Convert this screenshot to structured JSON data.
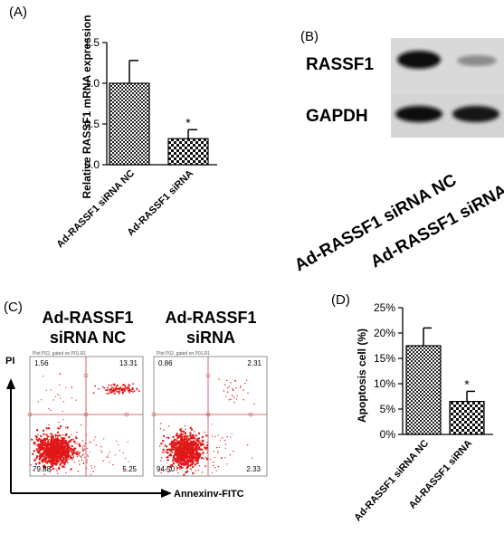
{
  "panels": {
    "a": "(A)",
    "b": "(B)",
    "c": "(C)",
    "d": "(D)"
  },
  "chart_data": [
    {
      "type": "bar",
      "panel": "(A)",
      "title": "",
      "ylabel": "Relative RASSF1 mRNA expression",
      "xlabel": "",
      "ylim": [
        0,
        1.5
      ],
      "yticks": [
        0.0,
        0.5,
        1.0,
        1.5
      ],
      "ytick_labels": [
        "0.0",
        "0.5",
        "1.0",
        "1.5"
      ],
      "categories": [
        "Ad-RASSF1 siRNA NC",
        "Ad-RASSF1 siRNA"
      ],
      "values": [
        1.0,
        0.32
      ],
      "errors": [
        0.28,
        0.11
      ],
      "annotations": [
        "",
        "*"
      ]
    },
    {
      "type": "bar",
      "panel": "(D)",
      "title": "",
      "ylabel": "Apoptosis cell (%)",
      "xlabel": "",
      "ylim": [
        0,
        25
      ],
      "yticks": [
        0,
        5,
        10,
        15,
        20,
        25
      ],
      "ytick_labels": [
        "0%",
        "5%",
        "10%",
        "15%",
        "20%",
        "25%"
      ],
      "categories": [
        "Ad-RASSF1 siRNA NC",
        "Ad-RASSF1 siRNA"
      ],
      "values": [
        17.5,
        6.5
      ],
      "errors": [
        3.5,
        2.0
      ],
      "annotations": [
        "",
        "*"
      ]
    }
  ],
  "western_blot": {
    "rows": [
      "RASSF1",
      "GAPDH"
    ],
    "lanes": [
      "Ad-RASSF1 siRNA NC",
      "Ad-RASSF1 siRNA"
    ]
  },
  "flow_cytometry": {
    "y_axis": "PI",
    "x_axis": "Annexinv-FITC",
    "plots": [
      {
        "title_line1": "Ad-RASSF1",
        "title_line2": "siRNA NC",
        "header": "Plot P02, gated on P01.R1",
        "q_upper_left": "1.56",
        "q_upper_right": "13.31",
        "q_lower_left": "79.88",
        "q_lower_right": "5.25"
      },
      {
        "title_line1": "Ad-RASSF1",
        "title_line2": "siRNA",
        "header": "Plot P02, gated on P01.R1",
        "q_upper_left": "0.86",
        "q_upper_right": "2.31",
        "q_lower_left": "94.50",
        "q_lower_right": "2.33"
      }
    ]
  }
}
